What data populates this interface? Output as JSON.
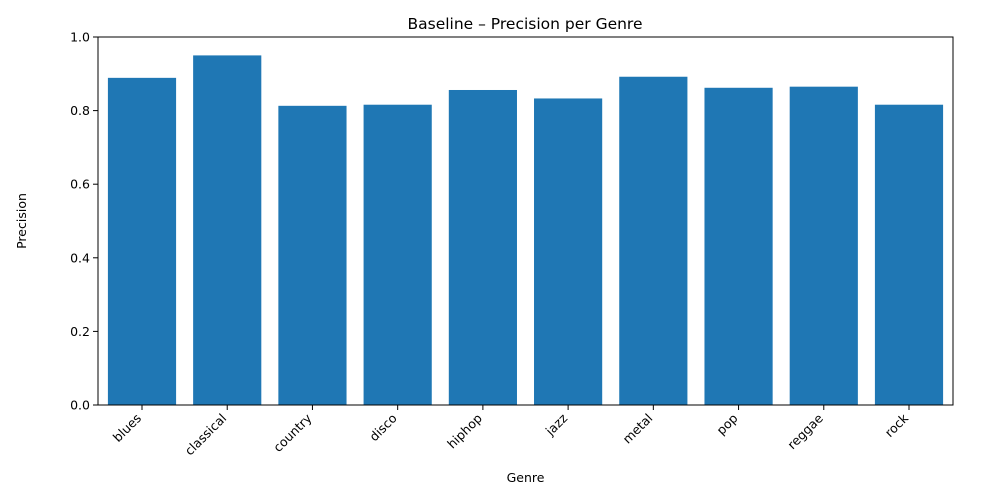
{
  "chart_data": {
    "type": "bar",
    "title": "Baseline – Precision per Genre",
    "xlabel": "Genre",
    "ylabel": "Precision",
    "categories": [
      "blues",
      "classical",
      "country",
      "disco",
      "hiphop",
      "jazz",
      "metal",
      "pop",
      "reggae",
      "rock"
    ],
    "values": [
      0.889,
      0.95,
      0.813,
      0.816,
      0.856,
      0.833,
      0.892,
      0.862,
      0.865,
      0.816
    ],
    "ylim": [
      0,
      1.0
    ],
    "yticks": [
      "0.0",
      "0.2",
      "0.4",
      "0.6",
      "0.8",
      "1.0"
    ],
    "grid": false,
    "bar_color": "#1f77b4"
  }
}
